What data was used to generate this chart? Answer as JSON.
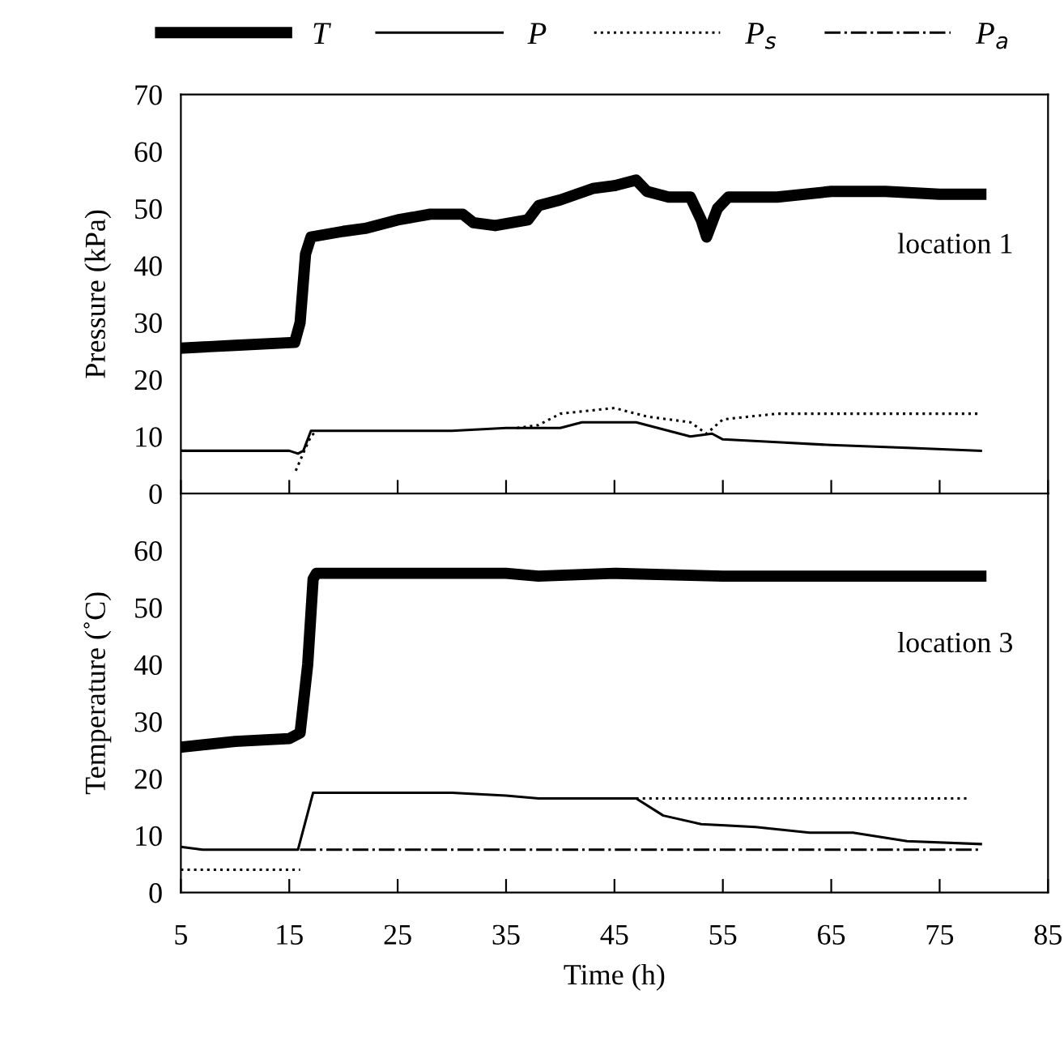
{
  "chart_data": [
    {
      "type": "line",
      "ylabel": "Pressure (kPa)",
      "annotations": [
        "location 1"
      ],
      "xlim": [
        5,
        85
      ],
      "xticks": [
        5,
        15,
        25,
        35,
        45,
        55,
        65,
        75,
        85
      ],
      "ylim": [
        0,
        70
      ],
      "yticks": [
        0,
        10,
        20,
        30,
        40,
        50,
        60,
        70
      ],
      "tick_labels": "y",
      "legend": "top",
      "grid": false,
      "series": [
        {
          "name": "T",
          "color": "#000000",
          "line_style": "solid",
          "x": [
            5,
            10,
            15.5,
            16,
            16.5,
            17,
            20,
            22,
            25,
            28,
            31,
            32,
            34,
            37,
            38,
            40,
            43,
            45,
            47,
            48,
            50,
            52,
            53,
            53.5,
            54.5,
            55.5,
            60,
            65,
            70,
            75,
            78.8
          ],
          "values": [
            25.5,
            26,
            26.5,
            30,
            42,
            45,
            46,
            46.5,
            48,
            49,
            49,
            47.5,
            47,
            48,
            50.5,
            51.5,
            53.5,
            54,
            55,
            53,
            52,
            52,
            48,
            45,
            50,
            52,
            52,
            53,
            53,
            52.5,
            52.5
          ]
        },
        {
          "name": "P",
          "color": "#000000",
          "line_style": "solid",
          "x": [
            5,
            10,
            15,
            15.8,
            16.3,
            17,
            20,
            25,
            30,
            35,
            40,
            42,
            47,
            50,
            52,
            54,
            55,
            60,
            65,
            72,
            78.8
          ],
          "values": [
            7.5,
            7.5,
            7.5,
            7,
            7.5,
            11,
            11,
            11,
            11,
            11.5,
            11.5,
            12.5,
            12.5,
            11,
            10,
            10.5,
            9.5,
            9,
            8.5,
            8,
            7.5
          ]
        },
        {
          "name": "P$_{s}$",
          "color": "#000000",
          "line_style": "dotted",
          "x": [
            15.6,
            16.5,
            17,
            17.5,
            null,
            36,
            38,
            40,
            45,
            48,
            50,
            52,
            53.5,
            55,
            60,
            70,
            78.8
          ],
          "values": [
            4,
            8,
            10,
            11,
            null,
            11.5,
            12,
            14,
            15,
            13.5,
            13,
            12.5,
            10.5,
            13,
            14,
            14,
            14
          ]
        }
      ]
    },
    {
      "type": "line",
      "ylabel": "Temperature (˚C)",
      "annotations": [
        "location 3"
      ],
      "xlabel": "Time (h)",
      "xlim": [
        5,
        85
      ],
      "xticks": [
        5,
        15,
        25,
        35,
        45,
        55,
        65,
        75,
        85
      ],
      "ylim": [
        0,
        70
      ],
      "yticks": [
        0,
        10,
        20,
        30,
        40,
        50,
        60
      ],
      "grid": false,
      "series": [
        {
          "color": "#000000",
          "line_style": "solid",
          "x": [
            5,
            10,
            15,
            16,
            16.7,
            17.2,
            17.5,
            25,
            35,
            38,
            45,
            55,
            65,
            78.8
          ],
          "values": [
            25.5,
            26.5,
            27,
            28,
            40,
            55,
            56,
            56,
            56,
            55.5,
            56,
            55.5,
            55.5,
            55.5
          ]
        },
        {
          "color": "#000000",
          "line_style": "solid",
          "x": [
            5,
            7,
            15.8,
            17.2,
            30,
            35,
            38,
            47,
            49.5,
            53,
            58,
            63,
            67,
            72,
            78.8
          ],
          "values": [
            8,
            7.5,
            7.5,
            17.5,
            17.5,
            17,
            16.5,
            16.5,
            13.5,
            12,
            11.5,
            10.5,
            10.5,
            9,
            8.5
          ]
        },
        {
          "color": "#000000",
          "line_style": "dotted",
          "x": [
            5,
            16,
            null,
            47,
            77.7
          ],
          "values": [
            4,
            4,
            null,
            16.5,
            16.5
          ]
        },
        {
          "name": "P$_{a}$",
          "color": "#000000",
          "line_style": "dashdot",
          "x": [
            16,
            78.8
          ],
          "values": [
            7.5,
            7.5
          ]
        }
      ]
    }
  ]
}
